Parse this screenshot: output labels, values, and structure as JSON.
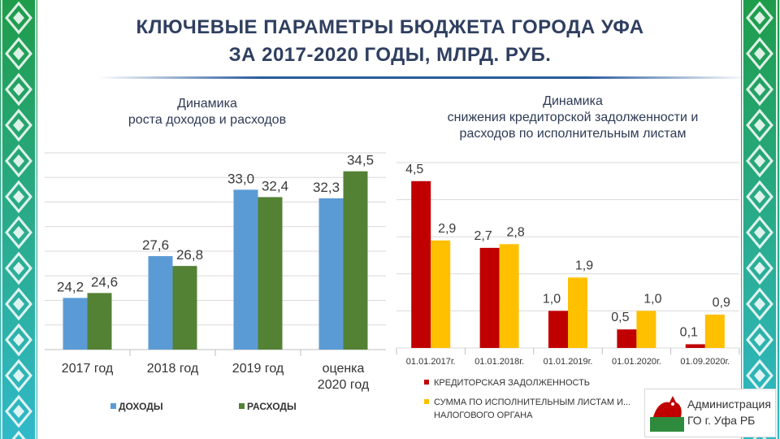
{
  "header": {
    "title_line1": "КЛЮЧЕВЫЕ ПАРАМЕТРЫ БЮДЖЕТА ГОРОДА УФА",
    "title_line2": "ЗА 2017-2020 ГОДЫ, МЛРД. РУБ."
  },
  "left_panel": {
    "subtitle_line1": "Динамика",
    "subtitle_line2": "роста доходов и расходов"
  },
  "right_panel": {
    "subtitle_line1": "Динамика",
    "subtitle_line2": "снижения кредиторской задолженности и",
    "subtitle_line3": "расходов по исполнительным листам"
  },
  "footer": {
    "logo_line1": "Администрация",
    "logo_line2": "ГО г. Уфа РБ"
  },
  "colors": {
    "income": "#5b9bd5",
    "expense": "#548235",
    "debt": "#c00000",
    "writs": "#ffc000",
    "border_green": "#1f9c4a",
    "border_cyan": "#30b9c9"
  },
  "chart_data": [
    {
      "type": "bar",
      "categories": [
        "2017 год",
        "2018 год",
        "2019 год",
        "оценка\n2020 год"
      ],
      "series": [
        {
          "name": "доходы",
          "values": [
            24.2,
            27.6,
            33.0,
            32.3
          ],
          "labels": [
            "24,2",
            "27,6",
            "33,0",
            "32,3"
          ]
        },
        {
          "name": "расходы",
          "values": [
            24.6,
            26.8,
            32.4,
            34.5
          ],
          "labels": [
            "24,6",
            "26,8",
            "32,4",
            "34,5"
          ]
        }
      ],
      "ylim": [
        20,
        36
      ],
      "grid": true,
      "legend": "bottom"
    },
    {
      "type": "bar",
      "categories": [
        "01.01.2017г.",
        "01.01.2018г.",
        "01.01.2019г.",
        "01.01.2020г.",
        "01.09.2020г."
      ],
      "series": [
        {
          "name": "КРЕДИТОРСКАЯ ЗАДОЛЖЕННОСТЬ",
          "values": [
            4.5,
            2.7,
            1.0,
            0.5,
            0.1
          ],
          "labels": [
            "4,5",
            "2,7",
            "1,0",
            "0,5",
            "0,1"
          ]
        },
        {
          "name": "СУММА ПО ИСПОЛНИТЕЛЬНЫМ ЛИСТАМ И... НАЛОГОВОГО ОРГАНА",
          "values": [
            2.9,
            2.8,
            1.9,
            1.0,
            0.9
          ],
          "labels": [
            "2,9",
            "2,8",
            "1,9",
            "1,0",
            "0,9"
          ]
        }
      ],
      "legend_lines": [
        "СУММА ПО ИСПОЛНИТЕЛЬНЫМ ЛИСТАМ И...",
        "НАЛОГОВОГО ОРГАНА"
      ],
      "ylim": [
        0,
        5
      ],
      "grid": true,
      "legend": "bottom"
    }
  ]
}
